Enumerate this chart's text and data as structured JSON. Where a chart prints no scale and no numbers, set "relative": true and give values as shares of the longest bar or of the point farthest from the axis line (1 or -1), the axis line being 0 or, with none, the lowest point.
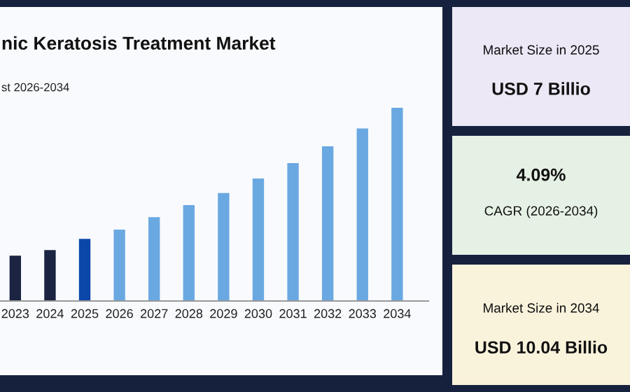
{
  "chart_data": [
    {
      "type": "bar",
      "title": "nic Keratosis Treatment Market",
      "subtitle": "st 2026-2034",
      "relative": true,
      "categories": [
        "2023",
        "2024",
        "2025",
        "2026",
        "2027",
        "2028",
        "2029",
        "2030",
        "2031",
        "2032",
        "2033",
        "2034"
      ],
      "values": [
        0.235,
        0.264,
        0.322,
        0.37,
        0.434,
        0.496,
        0.559,
        0.634,
        0.714,
        0.801,
        0.893,
        1.0
      ],
      "colors": [
        "#1b2440",
        "#1b2440",
        "#0b47a8",
        "#6aa8e2",
        "#6aa8e2",
        "#6aa8e2",
        "#6aa8e2",
        "#6aa8e2",
        "#6aa8e2",
        "#6aa8e2",
        "#6aa8e2",
        "#6aa8e2"
      ],
      "grid": false,
      "legend": false
    },
    {
      "type": "other",
      "annotations": [
        "Market Size in 2025",
        "USD 7 Billio"
      ]
    },
    {
      "type": "other",
      "annotations": [
        "4.09%",
        "CAGR (2026-2034)"
      ]
    },
    {
      "type": "other",
      "annotations": [
        "Market Size in 2034",
        "USD 10.04 Billio"
      ]
    }
  ]
}
